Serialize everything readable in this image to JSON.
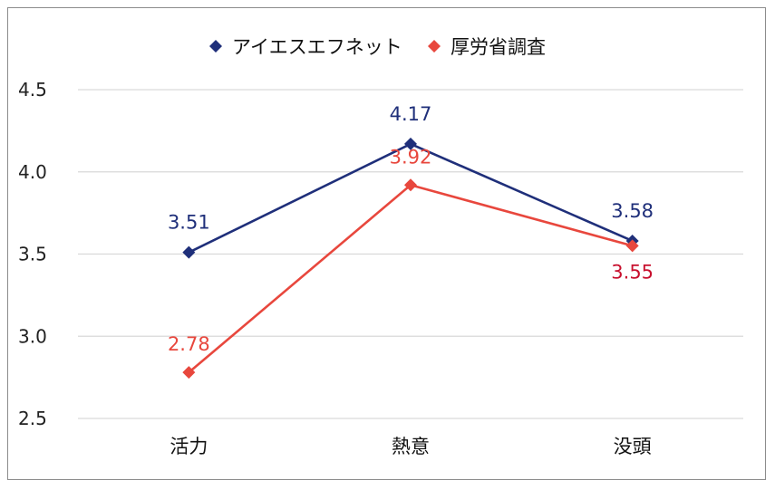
{
  "chart_data": {
    "type": "line",
    "title": "",
    "xlabel": "",
    "ylabel": "",
    "categories": [
      "活力",
      "熱意",
      "没頭"
    ],
    "ylim": [
      2.5,
      4.5
    ],
    "yticks": [
      "2.5",
      "3.0",
      "3.5",
      "4.0",
      "4.5"
    ],
    "grid": true,
    "legend_position": "top",
    "series": [
      {
        "name": "アイエスエフネット",
        "values": [
          3.51,
          4.17,
          3.58
        ],
        "labels": [
          "3.51",
          "4.17",
          "3.58"
        ],
        "color": "#1f2f7a",
        "label_color": "#1f2f7a",
        "marker": "diamond"
      },
      {
        "name": "厚労省調査",
        "values": [
          2.78,
          3.92,
          3.55
        ],
        "labels": [
          "2.78",
          "3.92",
          "3.55"
        ],
        "color": "#e8473d",
        "label_color": "#e8473d",
        "marker": "diamond"
      }
    ]
  }
}
